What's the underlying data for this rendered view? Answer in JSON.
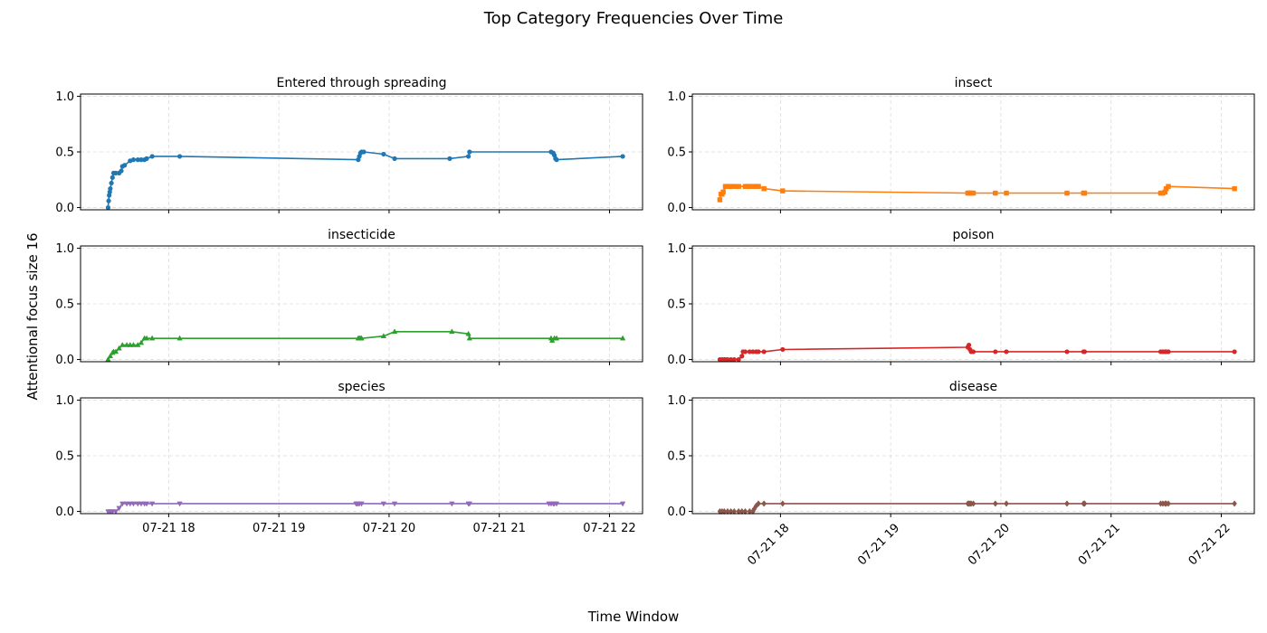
{
  "figure": {
    "title": "Top Category Frequencies Over Time",
    "xlabel": "Time Window",
    "ylabel": "Attentional focus size 16"
  },
  "chart_data": [
    {
      "type": "line",
      "title": "Entered through spreading",
      "color": "#1f77b4",
      "marker": "circle",
      "ylim": [
        0,
        1
      ],
      "yticks": [
        "0.0",
        "0.5",
        "1.0"
      ],
      "xlim": [
        17.2,
        22.3
      ],
      "xticks": [
        "07-21 18",
        "07-21 19",
        "07-21 20",
        "07-21 21",
        "07-21 22"
      ],
      "grid": true,
      "x": [
        17.45,
        17.455,
        17.46,
        17.465,
        17.47,
        17.48,
        17.49,
        17.5,
        17.52,
        17.55,
        17.57,
        17.58,
        17.6,
        17.65,
        17.68,
        17.72,
        17.75,
        17.78,
        17.8,
        17.85,
        18.1,
        19.72,
        19.73,
        19.74,
        19.75,
        19.77,
        19.95,
        20.05,
        20.55,
        20.72,
        20.73,
        21.47,
        21.49,
        21.5,
        21.51,
        21.52,
        22.12
      ],
      "y": [
        0.0,
        0.06,
        0.11,
        0.14,
        0.17,
        0.22,
        0.27,
        0.31,
        0.31,
        0.31,
        0.33,
        0.37,
        0.38,
        0.42,
        0.43,
        0.43,
        0.43,
        0.43,
        0.44,
        0.46,
        0.46,
        0.43,
        0.46,
        0.49,
        0.5,
        0.5,
        0.48,
        0.44,
        0.44,
        0.46,
        0.5,
        0.5,
        0.49,
        0.47,
        0.44,
        0.43,
        0.46
      ]
    },
    {
      "type": "line",
      "title": "insect",
      "color": "#ff7f0e",
      "marker": "square",
      "ylim": [
        0,
        1
      ],
      "yticks": [
        "0.0",
        "0.5",
        "1.0"
      ],
      "xlim": [
        17.2,
        22.3
      ],
      "xticks": [
        "07-21 18",
        "07-21 19",
        "07-21 20",
        "07-21 21",
        "07-21 22"
      ],
      "grid": true,
      "x": [
        17.45,
        17.46,
        17.47,
        17.48,
        17.5,
        17.52,
        17.55,
        17.58,
        17.62,
        17.68,
        17.7,
        17.72,
        17.75,
        17.78,
        17.8,
        17.85,
        18.02,
        19.7,
        19.71,
        19.72,
        19.73,
        19.75,
        19.95,
        20.05,
        20.6,
        20.75,
        20.76,
        21.45,
        21.47,
        21.49,
        21.5,
        21.52,
        22.12
      ],
      "y": [
        0.07,
        0.12,
        0.12,
        0.14,
        0.19,
        0.19,
        0.19,
        0.19,
        0.19,
        0.19,
        0.19,
        0.19,
        0.19,
        0.19,
        0.19,
        0.17,
        0.15,
        0.13,
        0.13,
        0.13,
        0.13,
        0.13,
        0.13,
        0.13,
        0.13,
        0.13,
        0.13,
        0.13,
        0.13,
        0.14,
        0.17,
        0.19,
        0.17
      ]
    },
    {
      "type": "line",
      "title": "insecticide",
      "color": "#2ca02c",
      "marker": "triangle-up",
      "ylim": [
        0,
        1
      ],
      "yticks": [
        "0.0",
        "0.5",
        "1.0"
      ],
      "xlim": [
        17.2,
        22.3
      ],
      "xticks": [
        "07-21 18",
        "07-21 19",
        "07-21 20",
        "07-21 21",
        "07-21 22"
      ],
      "grid": true,
      "x": [
        17.45,
        17.47,
        17.49,
        17.5,
        17.52,
        17.55,
        17.58,
        17.62,
        17.65,
        17.68,
        17.72,
        17.75,
        17.78,
        17.8,
        17.85,
        18.1,
        19.72,
        19.73,
        19.74,
        19.75,
        19.95,
        20.05,
        20.57,
        20.72,
        20.73,
        21.47,
        21.48,
        21.5,
        21.52,
        22.12
      ],
      "y": [
        0.0,
        0.03,
        0.06,
        0.07,
        0.07,
        0.1,
        0.13,
        0.13,
        0.13,
        0.13,
        0.13,
        0.15,
        0.19,
        0.19,
        0.19,
        0.19,
        0.19,
        0.19,
        0.19,
        0.19,
        0.21,
        0.25,
        0.25,
        0.23,
        0.19,
        0.19,
        0.17,
        0.19,
        0.19,
        0.19
      ]
    },
    {
      "type": "line",
      "title": "poison",
      "color": "#d62728",
      "marker": "circle",
      "ylim": [
        0,
        1
      ],
      "yticks": [
        "0.0",
        "0.5",
        "1.0"
      ],
      "xlim": [
        17.2,
        22.3
      ],
      "xticks": [
        "07-21 18",
        "07-21 19",
        "07-21 20",
        "07-21 21",
        "07-21 22"
      ],
      "grid": true,
      "x": [
        17.45,
        17.47,
        17.49,
        17.5,
        17.52,
        17.55,
        17.58,
        17.62,
        17.65,
        17.66,
        17.68,
        17.72,
        17.75,
        17.78,
        17.8,
        17.85,
        18.02,
        19.7,
        19.71,
        19.72,
        19.73,
        19.75,
        19.95,
        20.05,
        20.6,
        20.75,
        20.76,
        21.45,
        21.47,
        21.49,
        21.5,
        21.52,
        22.12
      ],
      "y": [
        0.0,
        0.0,
        0.0,
        0.0,
        0.0,
        0.0,
        0.0,
        0.0,
        0.03,
        0.07,
        0.07,
        0.07,
        0.07,
        0.07,
        0.07,
        0.07,
        0.09,
        0.11,
        0.13,
        0.09,
        0.07,
        0.07,
        0.07,
        0.07,
        0.07,
        0.07,
        0.07,
        0.07,
        0.07,
        0.07,
        0.07,
        0.07,
        0.07
      ]
    },
    {
      "type": "line",
      "title": "species",
      "color": "#9467bd",
      "marker": "triangle-down",
      "ylim": [
        0,
        1
      ],
      "yticks": [
        "0.0",
        "0.5",
        "1.0"
      ],
      "xlim": [
        17.2,
        22.3
      ],
      "xticks": [
        "07-21 18",
        "07-21 19",
        "07-21 20",
        "07-21 21",
        "07-21 22"
      ],
      "grid": true,
      "x": [
        17.45,
        17.47,
        17.49,
        17.52,
        17.55,
        17.58,
        17.62,
        17.65,
        17.68,
        17.72,
        17.75,
        17.78,
        17.8,
        17.85,
        18.1,
        19.7,
        19.71,
        19.72,
        19.73,
        19.75,
        19.95,
        20.05,
        20.57,
        20.72,
        20.73,
        21.45,
        21.47,
        21.49,
        21.5,
        21.52,
        22.12
      ],
      "y": [
        0.0,
        0.0,
        0.0,
        0.0,
        0.03,
        0.07,
        0.07,
        0.07,
        0.07,
        0.07,
        0.07,
        0.07,
        0.07,
        0.07,
        0.07,
        0.07,
        0.07,
        0.07,
        0.07,
        0.07,
        0.07,
        0.07,
        0.07,
        0.07,
        0.07,
        0.07,
        0.07,
        0.07,
        0.07,
        0.07,
        0.07
      ]
    },
    {
      "type": "line",
      "title": "disease",
      "color": "#8c564b",
      "marker": "diamond",
      "ylim": [
        0,
        1
      ],
      "yticks": [
        "0.0",
        "0.5",
        "1.0"
      ],
      "xlim": [
        17.2,
        22.3
      ],
      "xticks": [
        "07-21 18",
        "07-21 19",
        "07-21 20",
        "07-21 21",
        "07-21 22"
      ],
      "xtick_rotation": 45,
      "grid": true,
      "x": [
        17.45,
        17.47,
        17.49,
        17.52,
        17.55,
        17.58,
        17.62,
        17.65,
        17.68,
        17.72,
        17.75,
        17.76,
        17.78,
        17.8,
        17.85,
        18.02,
        19.7,
        19.71,
        19.72,
        19.73,
        19.75,
        19.95,
        20.05,
        20.6,
        20.75,
        20.76,
        21.45,
        21.47,
        21.49,
        21.5,
        21.52,
        22.12
      ],
      "y": [
        0.0,
        0.0,
        0.0,
        0.0,
        0.0,
        0.0,
        0.0,
        0.0,
        0.0,
        0.0,
        0.0,
        0.02,
        0.05,
        0.07,
        0.07,
        0.07,
        0.07,
        0.07,
        0.07,
        0.07,
        0.07,
        0.07,
        0.07,
        0.07,
        0.07,
        0.07,
        0.07,
        0.07,
        0.07,
        0.07,
        0.07,
        0.07
      ]
    }
  ]
}
